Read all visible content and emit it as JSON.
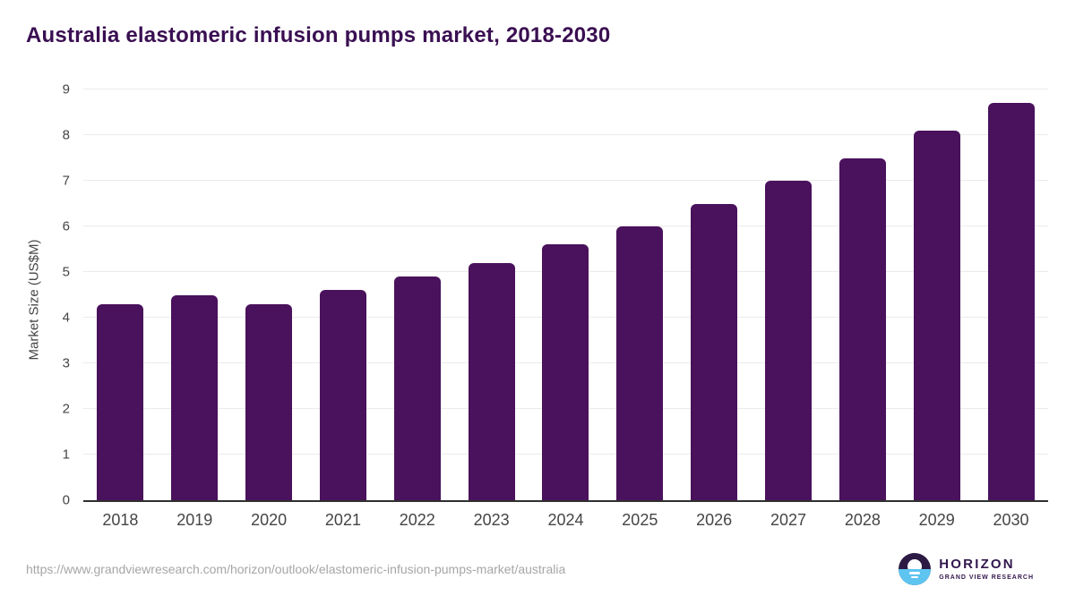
{
  "page_title": "Australia elastomeric infusion pumps market, 2018-2030",
  "chart_data": {
    "type": "bar",
    "title": "Australia elastomeric infusion pumps market, 2018-2030",
    "categories": [
      "2018",
      "2019",
      "2020",
      "2021",
      "2022",
      "2023",
      "2024",
      "2025",
      "2026",
      "2027",
      "2028",
      "2029",
      "2030"
    ],
    "values": [
      4.3,
      4.5,
      4.3,
      4.6,
      4.9,
      5.2,
      5.6,
      6.0,
      6.5,
      7.0,
      7.5,
      8.1,
      8.7
    ],
    "xlabel": "",
    "ylabel": "Market Size (US$M)",
    "ylim": [
      0,
      9
    ],
    "yticks": [
      0,
      1,
      2,
      3,
      4,
      5,
      6,
      7,
      8,
      9
    ],
    "grid": true,
    "legend": false,
    "bar_color": "#4a115c"
  },
  "footer": {
    "source_url": "https://www.grandviewresearch.com/horizon/outlook/elastomeric-infusion-pumps-market/australia",
    "logo": {
      "wordmark": "HORIZON",
      "subtitle": "GRAND VIEW RESEARCH"
    }
  },
  "colors": {
    "title_text": "#3a0f52",
    "bar": "#4a115c",
    "axis_text": "#454545",
    "gridline": "#ebebeb",
    "axis_line": "#2f2f2f",
    "url_text": "#a6a6a6",
    "logo_purple": "#32174d",
    "logo_dark_half": "#2c1a45",
    "logo_blue_half": "#5ec4f0"
  }
}
